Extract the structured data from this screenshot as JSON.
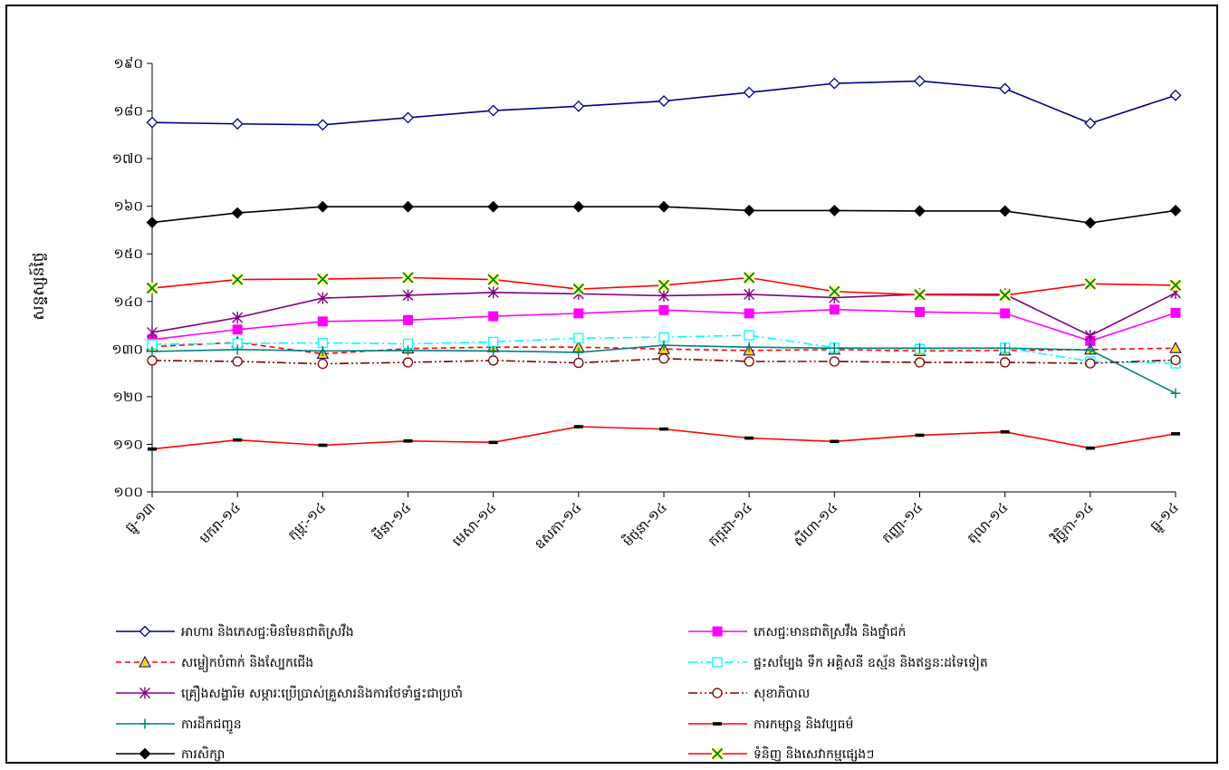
{
  "chart_data": {
    "type": "line",
    "title": "",
    "xlabel": "",
    "ylabel": "សន្ទស្សន៍ថ្លៃ",
    "categories": [
      "ធ្នូ-១៣",
      "មករា-១៤",
      "កុម្ភៈ-១៤",
      "មីនា-១៤",
      "មេសា-១៤",
      "ឧសភា-១៤",
      "មិថុនា-១៤",
      "កក្កដា-១៤",
      "សីហា-១៤",
      "កញ្ញា-១៤",
      "តុលា-១៤",
      "វិច្ឆិកា-១៤",
      "ធ្នូ-១៤"
    ],
    "ylim": [
      100,
      190
    ],
    "yticks": [
      100,
      110,
      120,
      130,
      140,
      150,
      160,
      170,
      180,
      190
    ],
    "ytick_labels": [
      "១០០",
      "១១០",
      "១២០",
      "១៣០",
      "១៤០",
      "១៥០",
      "១៦០",
      "១៧០",
      "១៨០",
      "១៩០"
    ],
    "grid": false,
    "legend_position": "bottom",
    "series": [
      {
        "name": "អាហារ និងភេសជ្ជៈមិនមែនជាតិស្រវឹង",
        "color": "#000080",
        "dash": "solid",
        "marker": "diamond-open",
        "values": [
          177.6,
          177.3,
          177.1,
          178.6,
          180.1,
          181.0,
          182.1,
          183.9,
          185.8,
          186.3,
          184.7,
          177.4,
          183.3
        ]
      },
      {
        "name": "ភេសជ្ជៈមានជាតិស្រវឹង និងថ្នាំជក់",
        "color": "#FF00FF",
        "dash": "solid",
        "marker": "square-filled",
        "values": [
          132.0,
          134.1,
          135.8,
          136.1,
          136.9,
          137.5,
          138.2,
          137.5,
          138.3,
          137.8,
          137.5,
          131.7,
          137.6
        ]
      },
      {
        "name": "សម្លៀកបំពាក់ និងស្បែកជើង",
        "color": "#FF0000",
        "dash": "dashed",
        "marker": "triangle-filled",
        "values": [
          130.5,
          131.4,
          129.0,
          130.1,
          130.4,
          130.4,
          130.0,
          129.7,
          129.9,
          129.6,
          129.7,
          129.9,
          130.2
        ]
      },
      {
        "name": "ផ្ទះសម្បែង ទឹក អគ្គិសនី ឧស្ម័ន និងឥន្ធនៈដទៃទៀត",
        "color": "#00FFFF",
        "dash": "dashdot",
        "marker": "square-open",
        "values": [
          131.0,
          131.2,
          131.3,
          131.1,
          131.5,
          132.3,
          132.5,
          132.9,
          130.3,
          130.0,
          130.3,
          127.4,
          127.0
        ]
      },
      {
        "name": "គ្រឿងសង្ហារិម សម្ភារៈប្រើប្រាស់គ្រួសារនិងការថែទាំផ្ទះជាប្រចាំ",
        "color": "#800080",
        "dash": "solid",
        "marker": "star",
        "values": [
          133.5,
          136.6,
          140.7,
          141.3,
          141.9,
          141.6,
          141.2,
          141.5,
          140.8,
          141.5,
          141.5,
          132.8,
          141.8
        ]
      },
      {
        "name": "សុខាភិបាល",
        "color": "#800000",
        "dash": "dashdotdot",
        "marker": "circle-open",
        "values": [
          127.6,
          127.4,
          126.9,
          127.2,
          127.6,
          127.1,
          128.0,
          127.4,
          127.4,
          127.2,
          127.2,
          127.0,
          127.7
        ]
      },
      {
        "name": "ការដឹកជញ្ជូន",
        "color": "#008080",
        "dash": "solid",
        "marker": "plus",
        "values": [
          129.5,
          129.9,
          129.6,
          129.7,
          129.6,
          129.3,
          130.8,
          130.4,
          130.2,
          130.2,
          130.2,
          129.8,
          120.7
        ]
      },
      {
        "name": "ការកម្សាន្ត និងវប្បធម៌",
        "color": "#FF0000",
        "dash": "solid",
        "marker": "dash",
        "values": [
          109.0,
          110.9,
          109.8,
          110.7,
          110.4,
          113.7,
          113.2,
          111.3,
          110.6,
          111.9,
          112.6,
          109.2,
          112.2
        ]
      },
      {
        "name": "ការសិក្សា",
        "color": "#000000",
        "dash": "solid",
        "marker": "diamond-filled",
        "values": [
          156.6,
          158.6,
          159.9,
          159.9,
          159.9,
          159.9,
          159.9,
          159.1,
          159.1,
          159.0,
          159.0,
          156.5,
          159.1
        ]
      },
      {
        "name": "ទំនិញ និងសេវាកម្មផ្សេងៗ",
        "color": "#FF0000",
        "dash": "solid",
        "marker": "x-yellow",
        "values": [
          142.8,
          144.6,
          144.7,
          145.0,
          144.6,
          142.6,
          143.4,
          145.0,
          142.1,
          141.4,
          141.3,
          143.7,
          143.4
        ]
      }
    ]
  }
}
